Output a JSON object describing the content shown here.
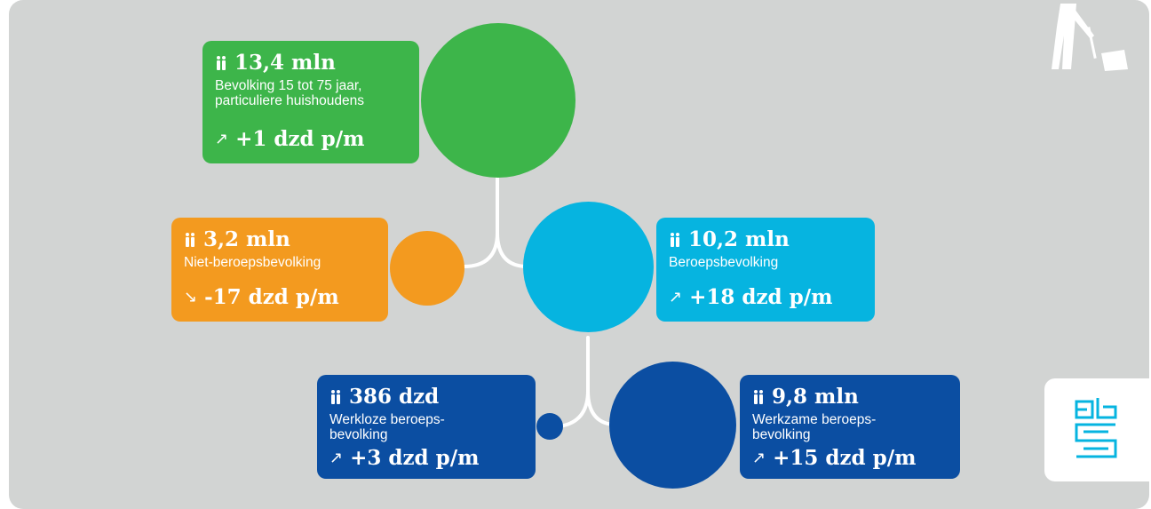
{
  "colors": {
    "background": "#d2d4d3",
    "green": "#3db54a",
    "orange": "#f39a1f",
    "light_blue": "#06b4e0",
    "dark_blue": "#0b4ea2",
    "connector": "#ffffff"
  },
  "icons": {
    "people": "people-icon",
    "up_arrow": "arrow-up-right-icon",
    "down_arrow": "arrow-down-right-icon",
    "logo": "cbs-logo",
    "decoration": "cleaner-icon"
  },
  "nodes": {
    "population": {
      "amount": "13,4 mln",
      "description": "Bevolking 15 tot 75 jaar, particuliere huishoudens",
      "arrow": "↗",
      "change": "+1 dzd p/m"
    },
    "not_labour_force": {
      "amount": "3,2 mln",
      "description": "Niet-beroepsbevolking",
      "arrow": "↘",
      "change": "-17 dzd p/m"
    },
    "labour_force": {
      "amount": "10,2 mln",
      "description": "Beroepsbevolking",
      "arrow": "↗",
      "change": "+18 dzd p/m"
    },
    "unemployed": {
      "amount": "386 dzd",
      "description": "Werkloze beroeps-\nbevolking",
      "arrow": "↗",
      "change": "+3 dzd p/m"
    },
    "employed": {
      "amount": "9,8 mln",
      "description": "Werkzame beroeps-\nbevolking",
      "arrow": "↗",
      "change": "+15 dzd p/m"
    }
  }
}
